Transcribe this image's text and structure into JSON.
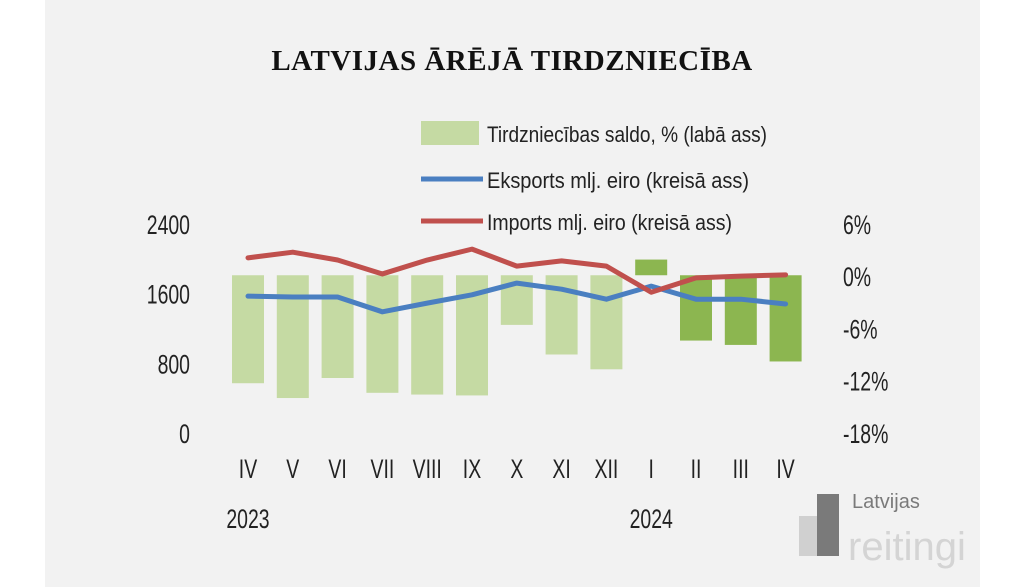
{
  "chart_data": {
    "type": "bar+line",
    "title": "LATVIJAS ĀRĒJĀ TIRDZNIECĪBA",
    "categories": [
      "IV",
      "V",
      "VI",
      "VII",
      "VIII",
      "IX",
      "X",
      "XI",
      "XII",
      "I",
      "II",
      "III",
      "IV"
    ],
    "year_labels": [
      {
        "label": "2023",
        "category_index": 0
      },
      {
        "label": "2024",
        "category_index": 9
      }
    ],
    "left_axis": {
      "ticks": [
        "0",
        "800",
        "1600",
        "2400"
      ],
      "ylim": [
        0,
        2400
      ]
    },
    "right_axis": {
      "ticks": [
        "-18%",
        "-12%",
        "-6%",
        "0%",
        "6%"
      ],
      "ylim": [
        -18,
        6
      ]
    },
    "series": [
      {
        "name": "Tirdzniecības saldo, % (labā ass)",
        "type": "bar",
        "axis": "right",
        "values": [
          -12.4,
          -14.1,
          -11.8,
          -13.5,
          -13.7,
          -13.8,
          -5.7,
          -9.1,
          -10.8,
          1.8,
          -7.5,
          -8.0,
          -9.9
        ],
        "colors": [
          "#c5daa3",
          "#c5daa3",
          "#c5daa3",
          "#c5daa3",
          "#c5daa3",
          "#c5daa3",
          "#c5daa3",
          "#c5daa3",
          "#c5daa3",
          "#8cb650",
          "#8cb650",
          "#8cb650",
          "#8cb650"
        ]
      },
      {
        "name": "Eksports mlj. eiro (kreisā ass)",
        "type": "line",
        "axis": "left",
        "color": "#4a7fc1",
        "values": [
          1560,
          1550,
          1550,
          1380,
          1480,
          1575,
          1710,
          1640,
          1525,
          1675,
          1525,
          1525,
          1470
        ]
      },
      {
        "name": "Imports mlj. eiro (kreisā ass)",
        "type": "line",
        "axis": "left",
        "color": "#c0504d",
        "values": [
          2000,
          2065,
          1975,
          1815,
          1975,
          2100,
          1905,
          1965,
          1905,
          1605,
          1770,
          1790,
          1805
        ]
      }
    ]
  },
  "logo": {
    "line1": "Latvijas",
    "line2": "reitingi"
  }
}
